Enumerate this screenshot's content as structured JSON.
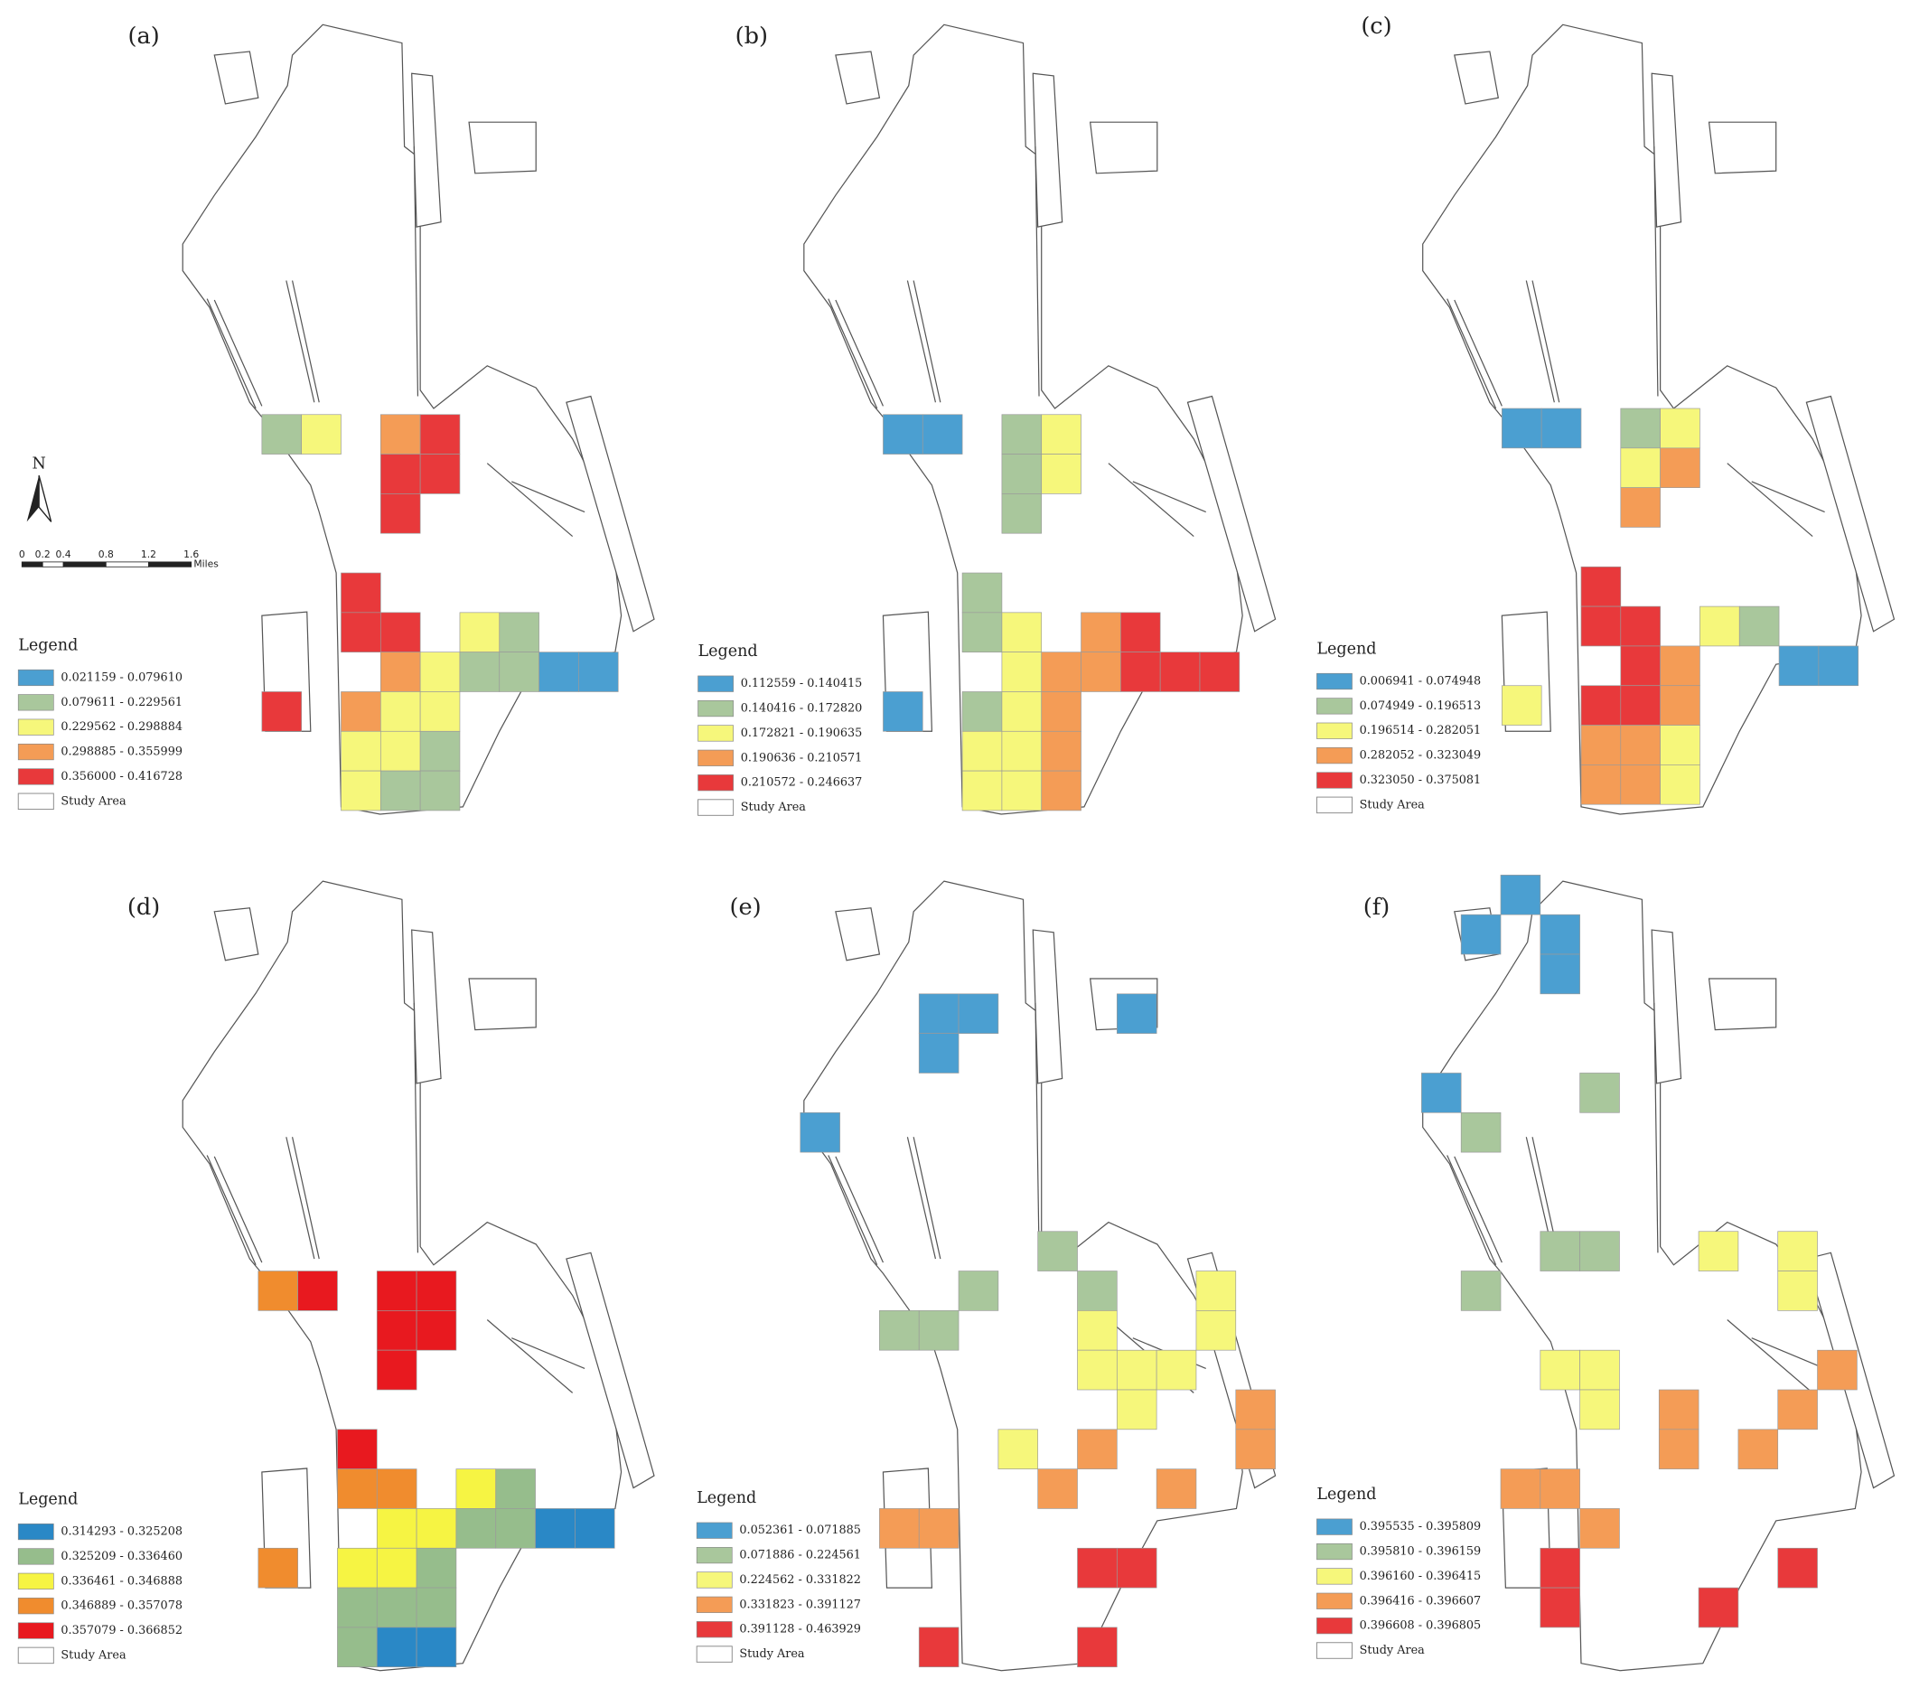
{
  "panels": [
    {
      "label": "(a)",
      "legend": {
        "title": "Legend",
        "study_area": "Study Area",
        "entries": [
          {
            "label": "0.021159 - 0.079610",
            "color": "#4b9fd1"
          },
          {
            "label": "0.079611 - 0.229561",
            "color": "#a9c79c"
          },
          {
            "label": "0.229562 - 0.298884",
            "color": "#f6f77b"
          },
          {
            "label": "0.298885 - 0.355999",
            "color": "#f49c56"
          },
          {
            "label": "0.356000 - 0.416728",
            "color": "#e8393b"
          }
        ]
      }
    },
    {
      "label": "(b)",
      "legend": {
        "title": "Legend",
        "study_area": "Study Area",
        "entries": [
          {
            "label": "0.112559 - 0.140415",
            "color": "#4b9fd1"
          },
          {
            "label": "0.140416 - 0.172820",
            "color": "#a9c79c"
          },
          {
            "label": "0.172821 - 0.190635",
            "color": "#f6f77b"
          },
          {
            "label": "0.190636 - 0.210571",
            "color": "#f49c56"
          },
          {
            "label": "0.210572 - 0.246637",
            "color": "#e8393b"
          }
        ]
      }
    },
    {
      "label": "(c)",
      "legend": {
        "title": "Legend",
        "study_area": "Study Area",
        "entries": [
          {
            "label": "0.006941 - 0.074948",
            "color": "#4b9fd1"
          },
          {
            "label": "0.074949 - 0.196513",
            "color": "#a9c79c"
          },
          {
            "label": "0.196514 - 0.282051",
            "color": "#f6f77b"
          },
          {
            "label": "0.282052 - 0.323049",
            "color": "#f49c56"
          },
          {
            "label": "0.323050 - 0.375081",
            "color": "#e8393b"
          }
        ]
      }
    },
    {
      "label": "(d)",
      "legend": {
        "title": "Legend",
        "study_area": "Study Area",
        "entries": [
          {
            "label": "0.314293 - 0.325208",
            "color": "#2a88c6"
          },
          {
            "label": "0.325209 - 0.336460",
            "color": "#96bd8c"
          },
          {
            "label": "0.336461 - 0.346888",
            "color": "#f6f443"
          },
          {
            "label": "0.346889 - 0.357078",
            "color": "#f08c2e"
          },
          {
            "label": "0.357079 - 0.366852",
            "color": "#e8191f"
          }
        ]
      }
    },
    {
      "label": "(e)",
      "legend": {
        "title": "Legend",
        "study_area": "Study Area",
        "entries": [
          {
            "label": "0.052361 - 0.071885",
            "color": "#4b9fd1"
          },
          {
            "label": "0.071886 - 0.224561",
            "color": "#a9c79c"
          },
          {
            "label": "0.224562 - 0.331822",
            "color": "#f6f77b"
          },
          {
            "label": "0.331823 - 0.391127",
            "color": "#f49c56"
          },
          {
            "label": "0.391128 - 0.463929",
            "color": "#e8393b"
          }
        ]
      }
    },
    {
      "label": "(f)",
      "legend": {
        "title": "Legend",
        "study_area": "Study Area",
        "entries": [
          {
            "label": "0.395535 - 0.395809",
            "color": "#4b9fd1"
          },
          {
            "label": "0.395810 - 0.396159",
            "color": "#a9c79c"
          },
          {
            "label": "0.396160 - 0.396415",
            "color": "#f6f77b"
          },
          {
            "label": "0.396416 - 0.396607",
            "color": "#f49c56"
          },
          {
            "label": "0.396608 - 0.396805",
            "color": "#e8393b"
          }
        ]
      }
    }
  ],
  "north": "N",
  "scale_bar": {
    "labels": [
      "0",
      "0.2",
      "0.4",
      "0.8",
      "1.2",
      "1.6"
    ],
    "unit": "Miles"
  }
}
